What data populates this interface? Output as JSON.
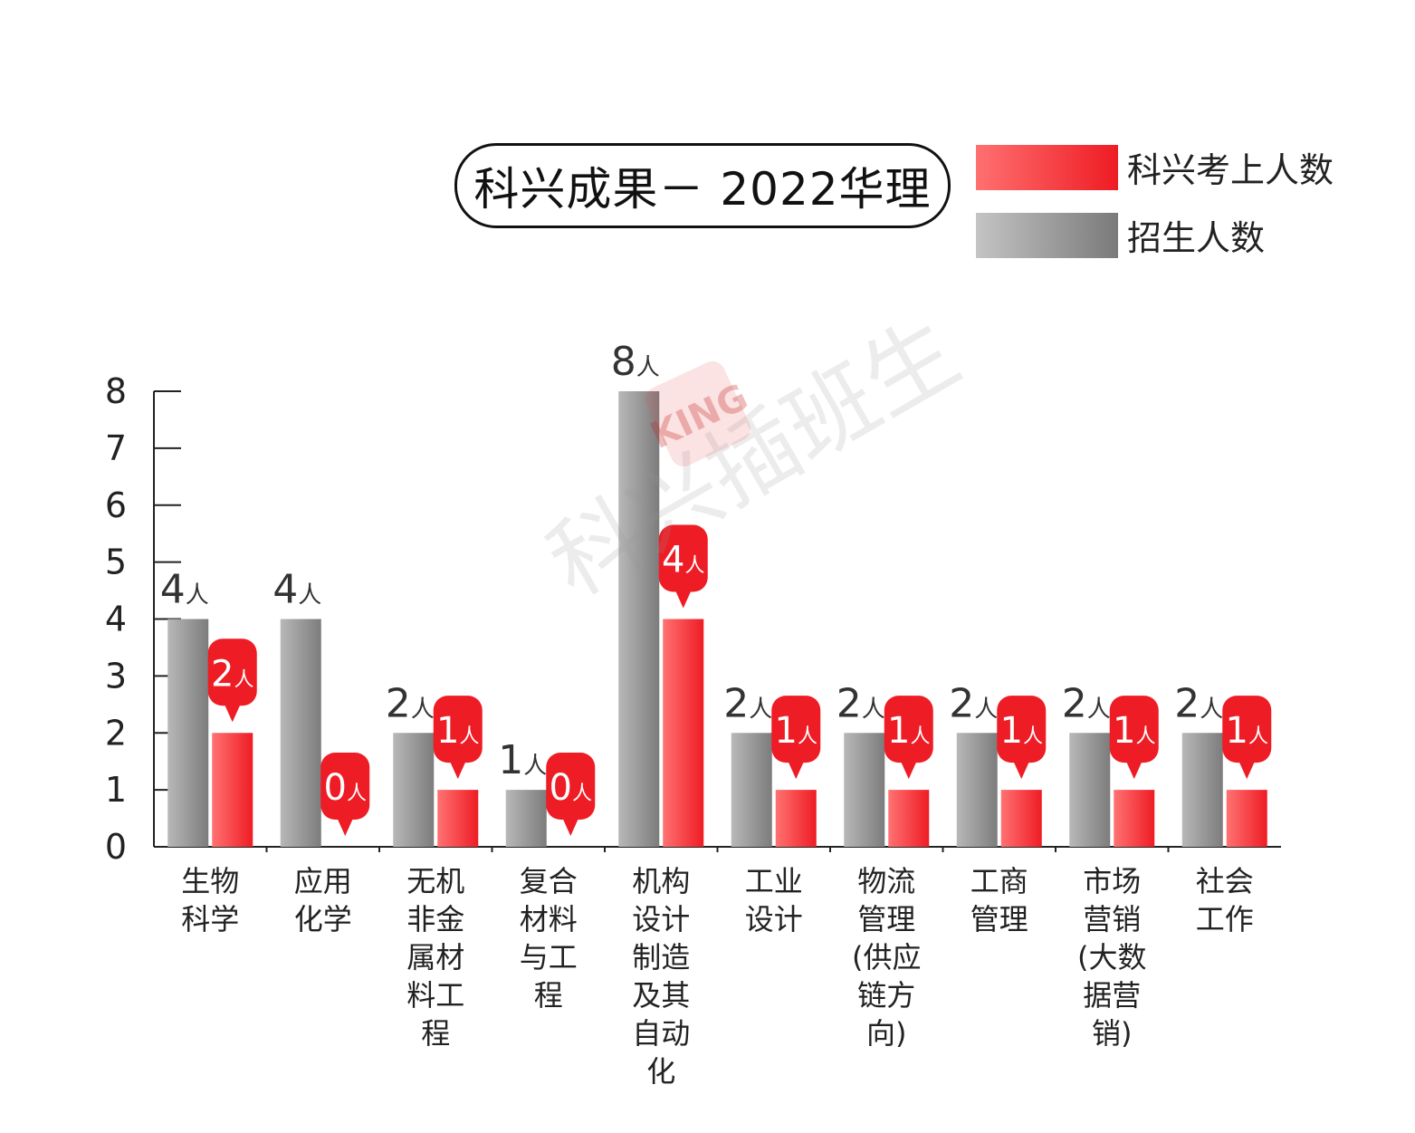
{
  "chart_data": {
    "type": "bar",
    "title": "科兴成果－ 2022华理",
    "categories": [
      "生物\n科学",
      "应用\n化学",
      "无机\n非金\n属材\n料工\n程",
      "复合\n材料\n与工\n程",
      "机构\n设计\n制造\n及其\n自动\n化",
      "工业\n设计",
      "物流\n管理\n(供应\n链方\n向)",
      "工商\n管理",
      "市场\n营销\n(大数\n据营\n销)",
      "社会\n工作"
    ],
    "series": [
      {
        "name": "招生人数",
        "values": [
          4,
          4,
          2,
          1,
          8,
          2,
          2,
          2,
          2,
          2
        ],
        "color": "#8c8c8c"
      },
      {
        "name": "科兴考上人数",
        "values": [
          2,
          0,
          1,
          0,
          4,
          1,
          1,
          1,
          1,
          1
        ],
        "color": "#f0282d"
      }
    ],
    "unit": "人",
    "ylim": [
      0,
      8
    ],
    "yticks": [
      "0",
      "1",
      "2",
      "3",
      "4",
      "5",
      "6",
      "7",
      "8"
    ],
    "legend": "top-right",
    "grid": false
  },
  "colors": {
    "gray_light": "#bdbdbd",
    "gray_dark": "#7c7c7c",
    "red_light": "#ff7070",
    "red_dark": "#ee1c24"
  },
  "watermark": {
    "text": "科兴插班生",
    "logo_text": "KING"
  }
}
